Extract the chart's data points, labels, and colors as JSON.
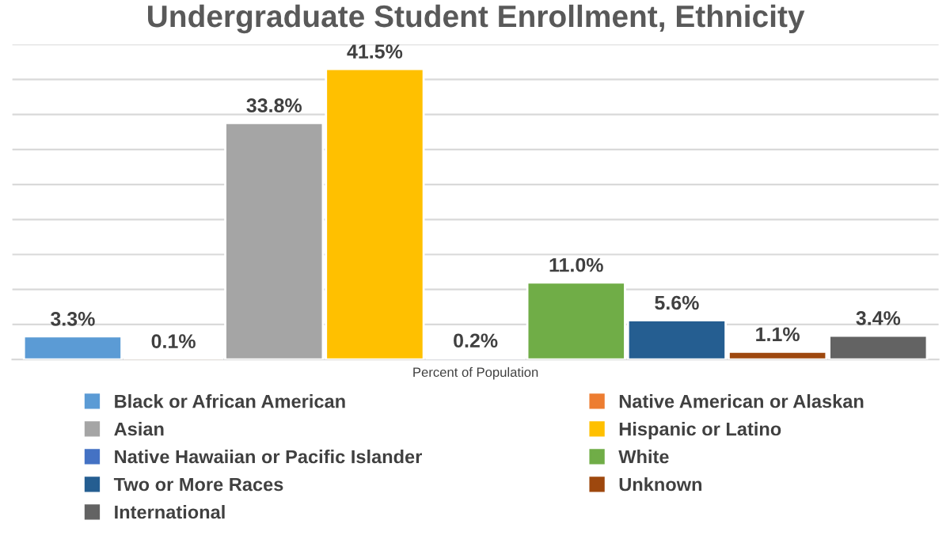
{
  "chart_data": {
    "type": "bar",
    "title": "Undergraduate Student Enrollment, Ethnicity",
    "xlabel": "Percent of Population",
    "categories": [
      null
    ],
    "series": [
      {
        "name": "Black or African American",
        "color": "#5b9bd5",
        "values": [
          3.3
        ],
        "value_labels": [
          "3.3%"
        ]
      },
      {
        "name": "Native American or Alaskan",
        "color": "#ed7d31",
        "values": [
          0.1
        ],
        "value_labels": [
          "0.1%"
        ]
      },
      {
        "name": "Asian",
        "color": "#a5a5a5",
        "values": [
          33.8
        ],
        "value_labels": [
          "33.8%"
        ]
      },
      {
        "name": "Hispanic or Latino",
        "color": "#ffc000",
        "values": [
          41.5
        ],
        "value_labels": [
          "41.5%"
        ]
      },
      {
        "name": "Native Hawaiian or Pacific Islander",
        "color": "#4472c4",
        "values": [
          0.2
        ],
        "value_labels": [
          "0.2%"
        ]
      },
      {
        "name": "White",
        "color": "#70ad47",
        "values": [
          11.0
        ],
        "value_labels": [
          "11.0%"
        ]
      },
      {
        "name": "Two or More Races",
        "color": "#255e91",
        "values": [
          5.6
        ],
        "value_labels": [
          "5.6%"
        ]
      },
      {
        "name": "Unknown",
        "color": "#9e480e",
        "values": [
          1.1
        ],
        "value_labels": [
          "1.1%"
        ]
      },
      {
        "name": "International",
        "color": "#636363",
        "values": [
          3.4
        ],
        "value_labels": [
          "3.4%"
        ]
      }
    ],
    "ylim": [
      0,
      45
    ],
    "yticks": [
      {
        "value": 0,
        "label": null
      },
      {
        "value": 5,
        "label": null
      },
      {
        "value": 10,
        "label": null
      },
      {
        "value": 15,
        "label": null
      },
      {
        "value": 20,
        "label": null
      },
      {
        "value": 25,
        "label": null
      },
      {
        "value": 30,
        "label": null
      },
      {
        "value": 35,
        "label": null
      },
      {
        "value": 40,
        "label": null
      },
      {
        "value": 45,
        "label": null
      }
    ],
    "grid": "y",
    "legend": "bottom"
  }
}
